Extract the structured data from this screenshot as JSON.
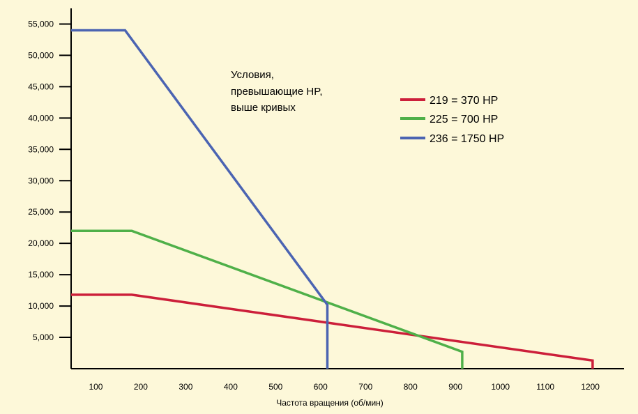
{
  "chart_data": {
    "type": "line",
    "title": "",
    "xlabel": "Частота вращения (об/мин)",
    "ylabel": "",
    "xlim": [
      45,
      1275
    ],
    "ylim": [
      0,
      57500
    ],
    "x_ticks": [
      100,
      200,
      300,
      400,
      500,
      600,
      700,
      800,
      900,
      1000,
      1100,
      1200
    ],
    "y_ticks": [
      5000,
      10000,
      15000,
      20000,
      25000,
      30000,
      35000,
      40000,
      45000,
      50000,
      55000
    ],
    "y_tick_labels": [
      "5,000",
      "10,000",
      "15,000",
      "20,000",
      "25,000",
      "30,000",
      "35,000",
      "40,000",
      "45,000",
      "50,000",
      "55,000"
    ],
    "x_tick_labels": [
      "100",
      "200",
      "300",
      "400",
      "500",
      "600",
      "700",
      "800",
      "900",
      "1000",
      "1100",
      "1200"
    ],
    "grid": false,
    "legend": "top-right",
    "annotation": [
      "Условия,",
      "превышающие HP,",
      "выше кривых"
    ],
    "series": [
      {
        "name": "219 = 370 HP",
        "color": "#cc1f3a",
        "points": [
          [
            45,
            11800
          ],
          [
            180,
            11800
          ],
          [
            1205,
            1300
          ],
          [
            1205,
            0
          ]
        ]
      },
      {
        "name": "225 = 700 HP",
        "color": "#4fb049",
        "points": [
          [
            45,
            22000
          ],
          [
            180,
            22000
          ],
          [
            915,
            2700
          ],
          [
            915,
            0
          ]
        ]
      },
      {
        "name": "236 = 1750 HP",
        "color": "#4b64b2",
        "points": [
          [
            45,
            54000
          ],
          [
            165,
            54000
          ],
          [
            615,
            10200
          ],
          [
            615,
            0
          ]
        ]
      }
    ]
  }
}
